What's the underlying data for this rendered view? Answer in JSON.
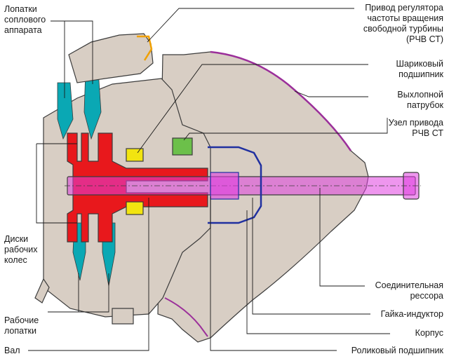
{
  "colors": {
    "body_fill": "#d8cec4",
    "outline": "#3c3c3c",
    "turbine_disc": "#e8181c",
    "nozzle_blade": "#0aa8b4",
    "rotor_blade": "#0aa8b4",
    "exhaust_edge": "#9b2f9a",
    "governor_drive": "#f0a000",
    "bearing_yellow": "#f2e410",
    "bearing_green": "#6cc04a",
    "bolt_pink": "#e040e0",
    "inner_case_blue": "#2030a0",
    "leader": "#1a1a1a"
  },
  "labels": {
    "nozzle_blades": "Лопатки\nсоплового\nаппарата",
    "discs": "Диски\nрабочих\nколес",
    "rotor_blades": "Рабочие\nлопатки",
    "shaft": "Вал",
    "governor_drive": "Привод регулятора\nчастоты вращения\nсвободной турбины\n(РЧВ СТ)",
    "ball_bearing": "Шариковый\nподшипник",
    "exhaust": "Выхлопной\nпатрубок",
    "drive_unit": "Узел привода\nРЧВ СТ",
    "spring": "Соединительная\nрессора",
    "nut": "Гайка-индуктор",
    "housing": "Корпус",
    "roller_bearing": "Роликовый подшипник"
  }
}
